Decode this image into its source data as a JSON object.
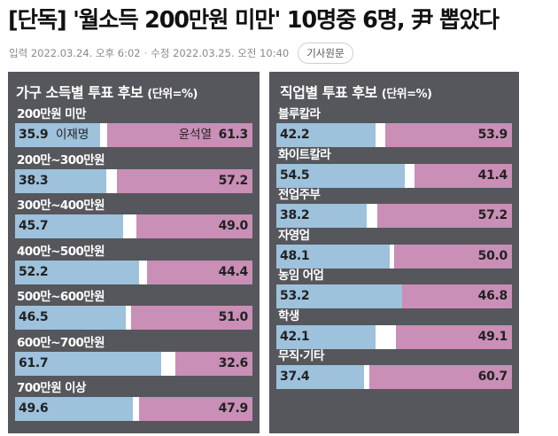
{
  "article": {
    "headline": "[단독] '월소득 200만원 미만' 10명중 6명, 尹 뽑았다",
    "input_label": "입력 2022.03.24. 오후 6:02",
    "separator": "·",
    "modified_label": "수정 2022.03.25. 오전 10:40",
    "source_button": "기사원문"
  },
  "colors": {
    "left_candidate": "#9ec1dc",
    "right_candidate": "#c98fb6",
    "panel_bg": "#55575c"
  },
  "income_panel": {
    "title": "가구 소득별 투표 후보",
    "unit": "(단위=%)",
    "candidate_left": "이재명",
    "candidate_right": "윤석열",
    "rows": [
      {
        "label": "200만원 미만",
        "left": "35.9",
        "right": "61.3"
      },
      {
        "label": "200만~300만원",
        "left": "38.3",
        "right": "57.2"
      },
      {
        "label": "300만~400만원",
        "left": "45.7",
        "right": "49.0"
      },
      {
        "label": "400만~500만원",
        "left": "52.2",
        "right": "44.4"
      },
      {
        "label": "500만~600만원",
        "left": "46.5",
        "right": "51.0"
      },
      {
        "label": "600만~700만원",
        "left": "61.7",
        "right": "32.6"
      },
      {
        "label": "700만원 이상",
        "left": "49.6",
        "right": "47.9"
      }
    ]
  },
  "job_panel": {
    "title": "직업별 투표 후보",
    "unit": "(단위=%)",
    "rows": [
      {
        "label": "블루칼라",
        "left": "42.2",
        "right": "53.9"
      },
      {
        "label": "화이트칼라",
        "left": "54.5",
        "right": "41.4"
      },
      {
        "label": "전업주부",
        "left": "38.2",
        "right": "57.2"
      },
      {
        "label": "자영업",
        "left": "48.1",
        "right": "50.0"
      },
      {
        "label": "농임 어업",
        "left": "53.2",
        "right": "46.8"
      },
      {
        "label": "학생",
        "left": "42.1",
        "right": "49.1"
      },
      {
        "label": "무직·기타",
        "left": "37.4",
        "right": "60.7"
      }
    ]
  }
}
